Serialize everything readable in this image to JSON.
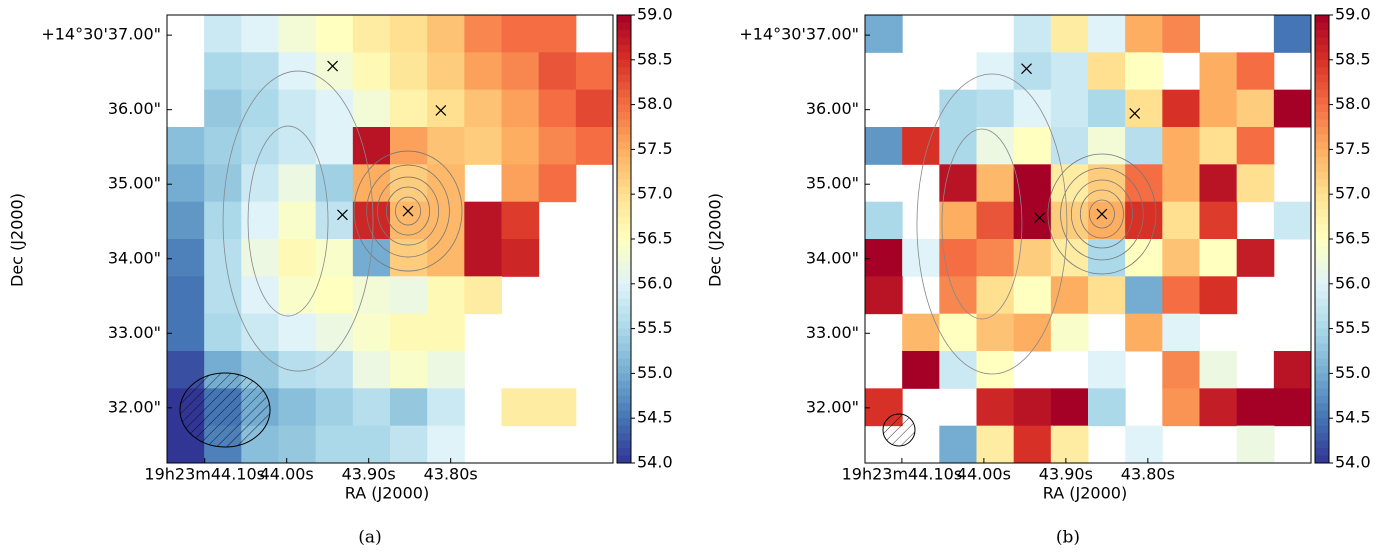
{
  "chart_data": [
    {
      "type": "heatmap",
      "caption": "(a)",
      "xlabel": "RA (J2000)",
      "ylabel": "Dec (J2000)",
      "xlim": [
        44.146,
        43.602
      ],
      "ylim": [
        31.26,
        37.27
      ],
      "xticks": [
        {
          "value": 44.1,
          "label": "19h23m44.10s"
        },
        {
          "value": 44.0,
          "label": "44.00s"
        },
        {
          "value": 43.9,
          "label": "43.90s"
        },
        {
          "value": 43.8,
          "label": "43.80s"
        }
      ],
      "yticks": [
        {
          "value": 37,
          "label": "+14°30'37.00\""
        },
        {
          "value": 36,
          "label": "36.00\""
        },
        {
          "value": 35,
          "label": "35.00\""
        },
        {
          "value": 34,
          "label": "34.00\""
        },
        {
          "value": 33,
          "label": "33.00\""
        },
        {
          "value": 32,
          "label": "32.00\""
        }
      ],
      "colormap": "RdYlBu_r",
      "zlim": [
        54,
        59
      ],
      "zticks": [
        {
          "value": 54,
          "label": "54.0"
        },
        {
          "value": 54.5,
          "label": "54.5"
        },
        {
          "value": 55,
          "label": "55.0"
        },
        {
          "value": 55.5,
          "label": "55.5"
        },
        {
          "value": 56,
          "label": "56.0"
        },
        {
          "value": 56.5,
          "label": "56.5"
        },
        {
          "value": 57,
          "label": "57.0"
        },
        {
          "value": 57.5,
          "label": "57.5"
        },
        {
          "value": 58,
          "label": "58.0"
        },
        {
          "value": 58.5,
          "label": "58.5"
        },
        {
          "value": 59,
          "label": "59.0"
        }
      ],
      "markers": {
        "x": [
          43.944,
          43.812,
          43.932,
          43.852
        ],
        "y": [
          36.585,
          35.99,
          34.59,
          34.64
        ]
      },
      "z": [
        [
          null,
          55.8,
          56,
          56.3,
          56.5,
          56.8,
          57,
          57.3,
          57.8,
          58,
          58,
          null
        ],
        [
          null,
          55.5,
          55.6,
          56,
          56.3,
          56.6,
          56.9,
          57.2,
          57.6,
          57.8,
          58.2,
          58
        ],
        [
          null,
          55.3,
          55.5,
          55.8,
          56,
          56.3,
          56.7,
          57,
          57.3,
          57.6,
          58,
          58.3
        ],
        [
          55.2,
          55.4,
          55.6,
          55.8,
          56,
          58.8,
          57.6,
          57.3,
          57.2,
          57.5,
          57.8,
          58
        ],
        [
          55,
          55.3,
          55.8,
          56.2,
          55.4,
          57.5,
          57.2,
          57.4,
          null,
          57.6,
          58,
          null
        ],
        [
          54.8,
          55.5,
          56,
          56.4,
          55.7,
          58.6,
          57.4,
          57.4,
          58.8,
          58.4,
          null,
          null
        ],
        [
          54.6,
          55.6,
          56.2,
          56.6,
          56.4,
          55,
          57.2,
          57.4,
          58.8,
          58.6,
          null,
          null
        ],
        [
          54.5,
          55.6,
          56,
          56.4,
          56.5,
          56.3,
          56.2,
          56.6,
          56.8,
          null,
          null,
          null
        ],
        [
          54.5,
          55.5,
          55.8,
          56,
          56.2,
          56.4,
          56.6,
          56.6,
          null,
          null,
          null,
          null
        ],
        [
          54.2,
          55,
          55.3,
          55.6,
          55.7,
          56.2,
          56.4,
          56.2,
          null,
          null,
          null,
          null
        ],
        [
          54,
          54.5,
          55,
          55.2,
          55.4,
          55.6,
          55.3,
          55.8,
          null,
          56.8,
          56.8,
          null
        ],
        [
          54,
          54.6,
          55.2,
          55.3,
          55.5,
          55.5,
          55.7,
          56,
          null,
          null,
          null,
          null
        ]
      ]
    },
    {
      "type": "heatmap",
      "caption": "(b)",
      "xlabel": "RA (J2000)",
      "ylabel": "Dec (J2000)",
      "xlim": [
        44.145,
        43.601
      ],
      "ylim": [
        31.26,
        37.27
      ],
      "xticks": [
        {
          "value": 44.1,
          "label": "19h23m44.10s"
        },
        {
          "value": 44.0,
          "label": "44.00s"
        },
        {
          "value": 43.9,
          "label": "43.90s"
        },
        {
          "value": 43.8,
          "label": "43.80s"
        }
      ],
      "yticks": [
        {
          "value": 37,
          "label": "+14°30'37.00\""
        },
        {
          "value": 36,
          "label": "36.00\""
        },
        {
          "value": 35,
          "label": "35.00\""
        },
        {
          "value": 34,
          "label": "34.00\""
        },
        {
          "value": 33,
          "label": "33.00\""
        },
        {
          "value": 32,
          "label": "32.00\""
        }
      ],
      "colormap": "RdYlBu_r",
      "zlim": [
        54,
        59
      ],
      "zticks": [
        {
          "value": 54,
          "label": "54.0"
        },
        {
          "value": 54.5,
          "label": "54.5"
        },
        {
          "value": 55,
          "label": "55.0"
        },
        {
          "value": 55.5,
          "label": "55.5"
        },
        {
          "value": 56,
          "label": "56.0"
        },
        {
          "value": 56.5,
          "label": "56.5"
        },
        {
          "value": 57,
          "label": "57.0"
        },
        {
          "value": 57.5,
          "label": "57.5"
        },
        {
          "value": 58,
          "label": "58.0"
        },
        {
          "value": 58.5,
          "label": "58.5"
        },
        {
          "value": 59,
          "label": "59.0"
        }
      ],
      "markers": {
        "x": [
          43.948,
          43.816,
          43.932,
          43.856
        ],
        "y": [
          36.55,
          35.95,
          34.55,
          34.6
        ]
      },
      "z": [
        [
          55,
          null,
          null,
          null,
          55.8,
          56.8,
          56,
          57.5,
          57.8,
          null,
          null,
          54.5
        ],
        [
          null,
          null,
          null,
          56,
          55.6,
          55.8,
          57,
          56.5,
          null,
          57.5,
          58,
          null
        ],
        [
          null,
          null,
          55.5,
          55.6,
          56,
          55.8,
          55.5,
          57,
          58.5,
          57.5,
          57.2,
          59
        ],
        [
          54.8,
          58.5,
          55.5,
          56.2,
          56.5,
          55.7,
          56.3,
          55.6,
          57.5,
          57,
          58,
          null
        ],
        [
          null,
          null,
          58.8,
          57.4,
          59,
          56.8,
          57.2,
          58,
          57.5,
          58.8,
          57,
          null
        ],
        [
          55.5,
          null,
          57.5,
          58.2,
          59,
          57.2,
          57.5,
          58.5,
          57,
          58.4,
          null,
          55.8
        ],
        [
          59,
          56,
          58,
          57.8,
          57.2,
          56.8,
          55.5,
          56.5,
          57.3,
          56.5,
          58.7,
          null
        ],
        [
          58.8,
          null,
          57.8,
          57,
          56.5,
          57.5,
          57,
          55,
          58,
          58.5,
          null,
          null
        ],
        [
          null,
          57.4,
          56.5,
          57.3,
          57.5,
          56.4,
          null,
          57.5,
          56,
          null,
          null,
          null
        ],
        [
          null,
          59,
          55.8,
          56.5,
          null,
          null,
          56,
          null,
          57.8,
          56.2,
          null,
          58.8
        ],
        [
          58.5,
          null,
          null,
          58.6,
          58.8,
          59,
          55.5,
          null,
          57.7,
          58.7,
          59,
          59
        ],
        [
          null,
          null,
          55,
          56.8,
          58.5,
          56.8,
          null,
          56,
          null,
          null,
          56.2,
          null
        ]
      ]
    }
  ]
}
